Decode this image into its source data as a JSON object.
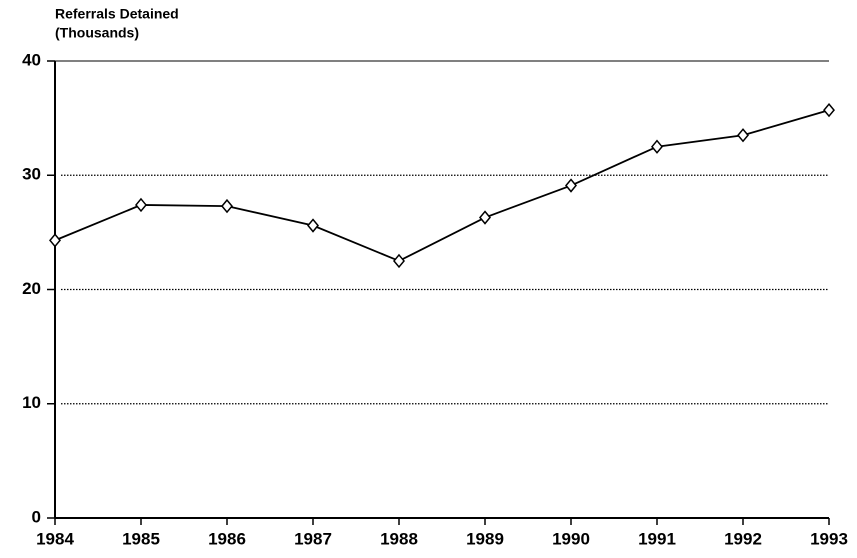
{
  "chart_data": {
    "type": "line",
    "ylabel_lines": [
      "Referrals Detained",
      "(Thousands)"
    ],
    "categories": [
      "1984",
      "1985",
      "1986",
      "1987",
      "1988",
      "1989",
      "1990",
      "1991",
      "1992",
      "1993"
    ],
    "values": [
      24.3,
      27.4,
      27.3,
      25.6,
      22.5,
      26.3,
      29.1,
      32.5,
      33.5,
      35.7
    ],
    "color": "#000000",
    "ylim": [
      0,
      40
    ],
    "yticks": [
      0,
      10,
      20,
      30,
      40
    ],
    "grid": true
  }
}
